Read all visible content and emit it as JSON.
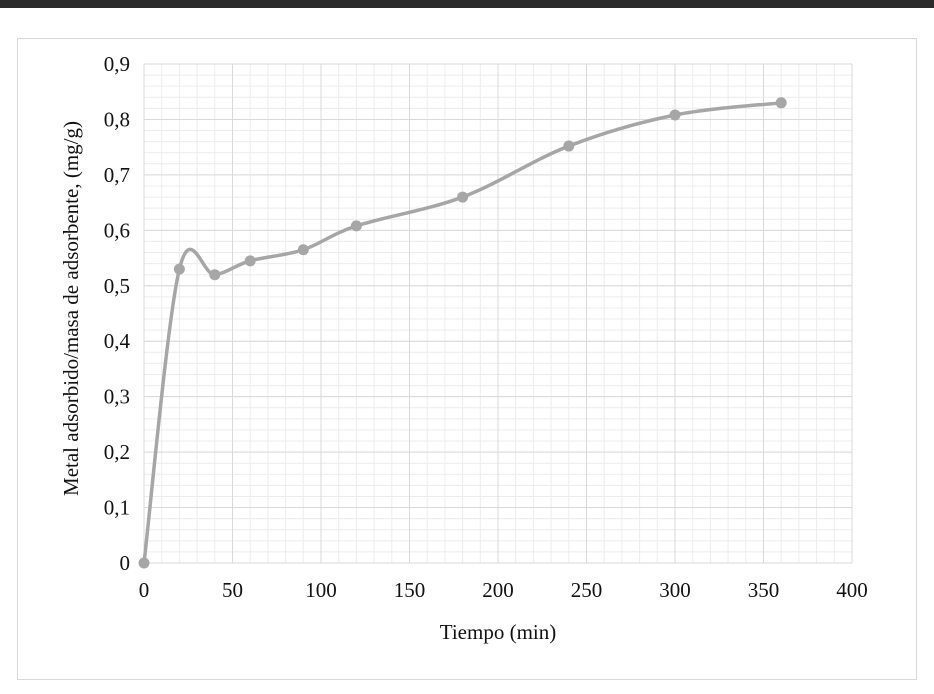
{
  "chart_data": {
    "type": "line",
    "title": "",
    "xlabel": "Tiempo (min)",
    "ylabel": "Metal adsorbido/masa de adsorbente, (mg/g)",
    "xlim": [
      0,
      400
    ],
    "ylim": [
      0,
      0.9
    ],
    "x_ticks": [
      "0",
      "50",
      "100",
      "150",
      "200",
      "250",
      "300",
      "350",
      "400"
    ],
    "y_ticks": [
      "0",
      "0,1",
      "0,2",
      "0,3",
      "0,4",
      "0,5",
      "0,6",
      "0,7",
      "0,8",
      "0,9"
    ],
    "grid": "major and minor",
    "smooth": true,
    "series": [
      {
        "color": "#a6a6a6",
        "points": [
          {
            "x": 0,
            "y": 0
          },
          {
            "x": 20,
            "y": 0.53
          },
          {
            "x": 40,
            "y": 0.52
          },
          {
            "x": 60,
            "y": 0.545
          },
          {
            "x": 90,
            "y": 0.565
          },
          {
            "x": 120,
            "y": 0.608
          },
          {
            "x": 180,
            "y": 0.66
          },
          {
            "x": 240,
            "y": 0.752
          },
          {
            "x": 300,
            "y": 0.808
          },
          {
            "x": 360,
            "y": 0.83
          }
        ]
      }
    ]
  },
  "colors": {
    "top_bar": "#2b2b2b",
    "grid_major": "#d9d9d9",
    "grid_minor": "#ececec",
    "series": "#a6a6a6"
  }
}
